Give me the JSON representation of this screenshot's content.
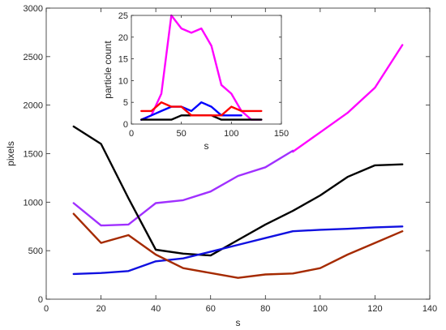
{
  "chart_data": [
    {
      "type": "line",
      "xlabel": "s",
      "ylabel": "pixels",
      "xlim": [
        0,
        140
      ],
      "ylim": [
        0,
        3000
      ],
      "xticks": [
        0,
        20,
        40,
        60,
        80,
        100,
        120,
        140
      ],
      "yticks": [
        0,
        500,
        1000,
        1500,
        2000,
        2500,
        3000
      ],
      "grid": false,
      "x": [
        10,
        20,
        30,
        40,
        50,
        60,
        70,
        80,
        90,
        100,
        110,
        120,
        130
      ],
      "series": [
        {
          "color": "#ff00ff",
          "values": [
            null,
            null,
            null,
            null,
            null,
            null,
            null,
            null,
            1520,
            1720,
            1920,
            2180,
            2620
          ]
        },
        {
          "color": "#a030ff",
          "values": [
            990,
            760,
            770,
            990,
            1020,
            1110,
            1270,
            1360,
            1530,
            null,
            null,
            null,
            null
          ]
        },
        {
          "color": "#000000",
          "values": [
            1780,
            1600,
            1040,
            510,
            470,
            450,
            610,
            770,
            910,
            1070,
            1260,
            1380,
            1390
          ]
        },
        {
          "color": "#1010e0",
          "values": [
            260,
            270,
            290,
            390,
            420,
            490,
            560,
            630,
            700,
            715,
            725,
            740,
            750
          ]
        },
        {
          "color": "#a52a00",
          "values": [
            880,
            580,
            660,
            460,
            320,
            270,
            220,
            255,
            265,
            320,
            460,
            580,
            700
          ]
        }
      ]
    },
    {
      "type": "line",
      "inset": true,
      "xlabel": "s",
      "ylabel": "particle count",
      "xlim": [
        0,
        150
      ],
      "ylim": [
        0,
        25
      ],
      "xticks": [
        0,
        50,
        100,
        150
      ],
      "yticks": [
        0,
        5,
        10,
        15,
        20,
        25
      ],
      "grid": false,
      "x": [
        10,
        20,
        30,
        40,
        50,
        60,
        70,
        80,
        90,
        100,
        110,
        120,
        130
      ],
      "series": [
        {
          "color": "#ff00ff",
          "values": [
            1,
            2,
            7,
            25,
            22,
            21,
            22,
            18,
            9,
            7,
            3,
            1,
            1
          ]
        },
        {
          "color": "#0000ff",
          "values": [
            1,
            2,
            3,
            4,
            4,
            3,
            5,
            4,
            2,
            2,
            2,
            null,
            null
          ]
        },
        {
          "color": "#000000",
          "values": [
            1,
            1,
            1,
            1,
            2,
            2,
            2,
            2,
            1,
            1,
            1,
            1,
            1
          ]
        },
        {
          "color": "#ff0000",
          "values": [
            3,
            3,
            5,
            4,
            4,
            2,
            2,
            2,
            2,
            4,
            3,
            3,
            3
          ]
        }
      ]
    }
  ]
}
